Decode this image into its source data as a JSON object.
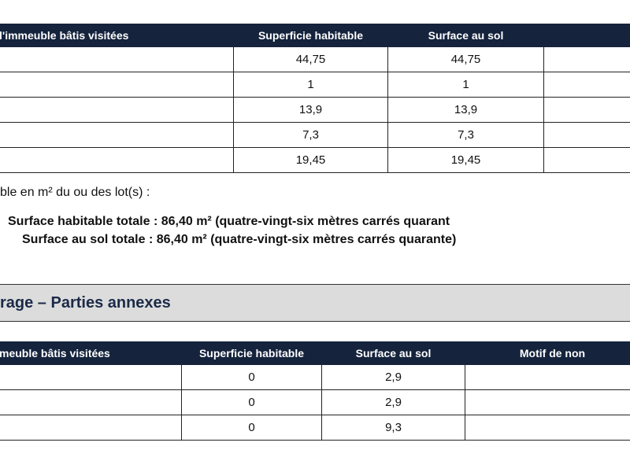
{
  "table1": {
    "headers": [
      "l'immeuble bâtis visitées",
      "Superficie habitable",
      "Surface au sol",
      ""
    ],
    "rows": [
      [
        "",
        "44,75",
        "44,75",
        ""
      ],
      [
        "",
        "1",
        "1",
        ""
      ],
      [
        "",
        "13,9",
        "13,9",
        ""
      ],
      [
        "",
        "7,3",
        "7,3",
        ""
      ],
      [
        "",
        "19,45",
        "19,45",
        ""
      ]
    ]
  },
  "summary": {
    "intro": "ble en m² du ou des lot(s) :",
    "line1": "Surface habitable totale : 86,40 m² (quatre-vingt-six mètres carrés quarant",
    "line2": "Surface au sol totale : 86,40 m² (quatre-vingt-six mètres carrés quarante)"
  },
  "section": {
    "title": "rage – Parties annexes"
  },
  "table2": {
    "headers": [
      "meuble bâtis visitées",
      "Superficie habitable",
      "Surface au sol",
      "Motif de non"
    ],
    "rows": [
      [
        "",
        "0",
        "2,9",
        ""
      ],
      [
        "",
        "0",
        "2,9",
        ""
      ],
      [
        "",
        "0",
        "9,3",
        ""
      ]
    ]
  }
}
